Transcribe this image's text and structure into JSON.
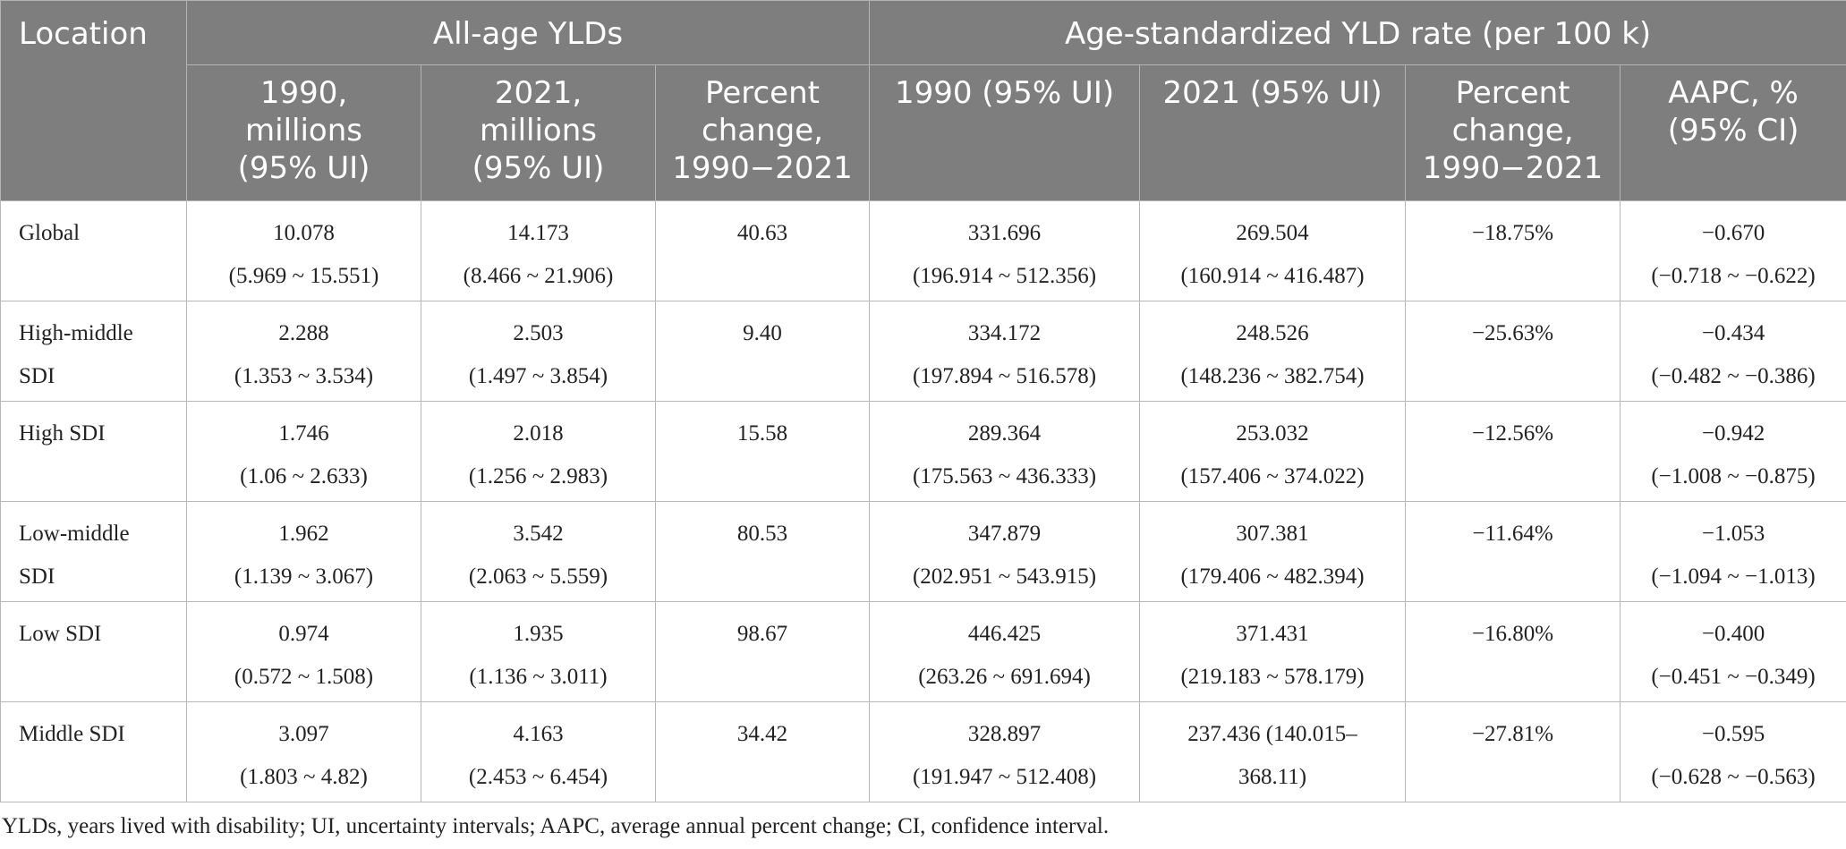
{
  "header": {
    "location": "Location",
    "all_age_group": "All-age YLDs",
    "age_std_group": "Age-standardized YLD rate (per 100 k)",
    "columns": {
      "c1": [
        "1990,",
        "millions",
        "(95% UI)"
      ],
      "c2": [
        "2021,",
        "millions",
        "(95% UI)"
      ],
      "c3": [
        "Percent",
        "change,",
        "1990−2021"
      ],
      "c4": [
        "1990 (95% UI)"
      ],
      "c5": [
        "2021 (95% UI)"
      ],
      "c6": [
        "Percent",
        "change,",
        "1990−2021"
      ],
      "c7": [
        "AAPC, %",
        "(95% CI)"
      ]
    }
  },
  "rows": [
    {
      "location": [
        "Global"
      ],
      "yld_1990": [
        "10.078",
        "(5.969 ~ 15.551)"
      ],
      "yld_2021": [
        "14.173",
        "(8.466 ~ 21.906)"
      ],
      "yld_change": [
        "40.63"
      ],
      "rate_1990": [
        "331.696",
        "(196.914 ~ 512.356)"
      ],
      "rate_2021": [
        "269.504",
        "(160.914 ~ 416.487)"
      ],
      "rate_change": [
        "−18.75%"
      ],
      "aapc": [
        "−0.670",
        "(−0.718 ~ −0.622)"
      ]
    },
    {
      "location": [
        "High-middle",
        "SDI"
      ],
      "yld_1990": [
        "2.288",
        "(1.353 ~ 3.534)"
      ],
      "yld_2021": [
        "2.503",
        "(1.497 ~ 3.854)"
      ],
      "yld_change": [
        "9.40"
      ],
      "rate_1990": [
        "334.172",
        "(197.894 ~ 516.578)"
      ],
      "rate_2021": [
        "248.526",
        "(148.236 ~ 382.754)"
      ],
      "rate_change": [
        "−25.63%"
      ],
      "aapc": [
        "−0.434",
        "(−0.482 ~ −0.386)"
      ]
    },
    {
      "location": [
        "High SDI"
      ],
      "yld_1990": [
        "1.746",
        "(1.06 ~ 2.633)"
      ],
      "yld_2021": [
        "2.018",
        "(1.256 ~ 2.983)"
      ],
      "yld_change": [
        "15.58"
      ],
      "rate_1990": [
        "289.364",
        "(175.563 ~ 436.333)"
      ],
      "rate_2021": [
        "253.032",
        "(157.406 ~ 374.022)"
      ],
      "rate_change": [
        "−12.56%"
      ],
      "aapc": [
        "−0.942",
        "(−1.008 ~ −0.875)"
      ]
    },
    {
      "location": [
        "Low-middle",
        "SDI"
      ],
      "yld_1990": [
        "1.962",
        "(1.139 ~ 3.067)"
      ],
      "yld_2021": [
        "3.542",
        "(2.063 ~ 5.559)"
      ],
      "yld_change": [
        "80.53"
      ],
      "rate_1990": [
        "347.879",
        "(202.951 ~ 543.915)"
      ],
      "rate_2021": [
        "307.381",
        "(179.406 ~ 482.394)"
      ],
      "rate_change": [
        "−11.64%"
      ],
      "aapc": [
        "−1.053",
        "(−1.094 ~ −1.013)"
      ]
    },
    {
      "location": [
        "Low SDI"
      ],
      "yld_1990": [
        "0.974",
        "(0.572 ~ 1.508)"
      ],
      "yld_2021": [
        "1.935",
        "(1.136 ~ 3.011)"
      ],
      "yld_change": [
        "98.67"
      ],
      "rate_1990": [
        "446.425",
        "(263.26 ~ 691.694)"
      ],
      "rate_2021": [
        "371.431",
        "(219.183 ~ 578.179)"
      ],
      "rate_change": [
        "−16.80%"
      ],
      "aapc": [
        "−0.400",
        "(−0.451 ~ −0.349)"
      ]
    },
    {
      "location": [
        "Middle SDI"
      ],
      "yld_1990": [
        "3.097",
        "(1.803 ~ 4.82)"
      ],
      "yld_2021": [
        "4.163",
        "(2.453 ~ 6.454)"
      ],
      "yld_change": [
        "34.42"
      ],
      "rate_1990": [
        "328.897",
        "(191.947 ~ 512.408)"
      ],
      "rate_2021": [
        "237.436 (140.015–",
        "368.11)"
      ],
      "rate_change": [
        "−27.81%"
      ],
      "aapc": [
        "−0.595",
        "(−0.628 ~ −0.563)"
      ]
    }
  ],
  "footnote": "YLDs, years lived with disability; UI, uncertainty intervals; AAPC, average annual percent change; CI, confidence interval."
}
